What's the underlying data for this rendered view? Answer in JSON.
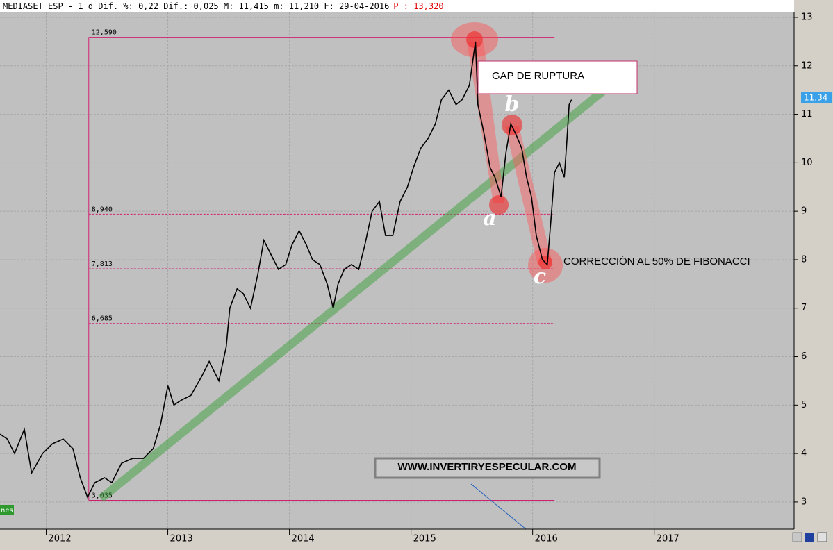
{
  "header": {
    "text": "MEDIASET ESP -  1 d Dif. %: 0,22 Dif.: 0,025 M: 11,415 m: 11,210 F: 29-04-2016",
    "price": "P : 13,320"
  },
  "chart_data": {
    "type": "line",
    "x": [
      2011.62,
      2011.68,
      2011.74,
      2011.82,
      2011.88,
      2011.97,
      2012.05,
      2012.14,
      2012.22,
      2012.28,
      2012.34,
      2012.4,
      2012.48,
      2012.54,
      2012.62,
      2012.71,
      2012.8,
      2012.88,
      2012.94,
      2013.0,
      2013.05,
      2013.11,
      2013.19,
      2013.28,
      2013.34,
      2013.42,
      2013.48,
      2013.51,
      2013.57,
      2013.62,
      2013.68,
      2013.74,
      2013.79,
      2013.85,
      2013.91,
      2013.97,
      2014.02,
      2014.08,
      2014.14,
      2014.19,
      2014.25,
      2014.31,
      2014.36,
      2014.4,
      2014.45,
      2014.51,
      2014.57,
      2014.62,
      2014.68,
      2014.74,
      2014.79,
      2014.85,
      2014.91,
      2014.97,
      2015.02,
      2015.08,
      2015.14,
      2015.2,
      2015.25,
      2015.31,
      2015.37,
      2015.42,
      2015.48,
      2015.53,
      2015.55,
      2015.6,
      2015.65,
      2015.69,
      2015.74,
      2015.78,
      2015.82,
      2015.86,
      2015.91,
      2015.95,
      2015.99,
      2016.03,
      2016.08,
      2016.12,
      2016.15,
      2016.18,
      2016.22,
      2016.26,
      2016.28,
      2016.3,
      2016.32
    ],
    "series": [
      {
        "color": "#000000",
        "values": [
          4.4,
          4.3,
          4.0,
          4.5,
          3.6,
          4.0,
          4.2,
          4.3,
          4.1,
          3.5,
          3.1,
          3.4,
          3.5,
          3.4,
          3.8,
          3.9,
          3.9,
          4.1,
          4.6,
          5.4,
          5.0,
          5.1,
          5.2,
          5.6,
          5.9,
          5.5,
          6.2,
          7.0,
          7.4,
          7.3,
          7.0,
          7.7,
          8.4,
          8.1,
          7.8,
          7.9,
          8.3,
          8.6,
          8.3,
          8.0,
          7.9,
          7.5,
          7.0,
          7.5,
          7.8,
          7.9,
          7.8,
          8.3,
          9.0,
          9.2,
          8.5,
          8.5,
          9.2,
          9.5,
          9.9,
          10.3,
          10.5,
          10.8,
          11.3,
          11.5,
          11.2,
          11.3,
          11.6,
          12.5,
          11.2,
          10.6,
          9.9,
          9.7,
          9.3,
          10.2,
          10.8,
          10.6,
          10.3,
          9.7,
          9.3,
          8.5,
          8.0,
          7.9,
          8.8,
          9.8,
          10.0,
          9.7,
          10.4,
          11.2,
          11.3
        ]
      }
    ],
    "xlim": [
      2011.62,
      2018.15
    ],
    "ylim": [
      2.44,
      13.1
    ],
    "xticks": [
      2012,
      2013,
      2014,
      2015,
      2016,
      2017
    ],
    "yticks": [
      3,
      4,
      5,
      6,
      7,
      8,
      9,
      10,
      11,
      12,
      13
    ],
    "grid": true,
    "last_price": {
      "value": 11.34,
      "label": "11,34"
    },
    "fibonacci": {
      "x": [
        2012.35,
        2016.18
      ],
      "levels": [
        {
          "value": 12.59,
          "label": "12,590"
        },
        {
          "value": 8.94,
          "label": "8,940"
        },
        {
          "value": 7.813,
          "label": "7,813"
        },
        {
          "value": 6.685,
          "label": "6,685"
        },
        {
          "value": 3.035,
          "label": "3,035"
        }
      ]
    },
    "trendline": {
      "x": [
        2012.45,
        2016.8
      ],
      "values": [
        3.07,
        11.93
      ]
    },
    "annotations": [
      "GAP DE RUPTURA",
      "CORRECCIÓN AL 50% DE FIBONACCI",
      "WWW.INVERTIRYESPECULAR.COM"
    ],
    "wave_labels": [
      "a",
      "b",
      "c"
    ],
    "volume_tag": "nes"
  }
}
